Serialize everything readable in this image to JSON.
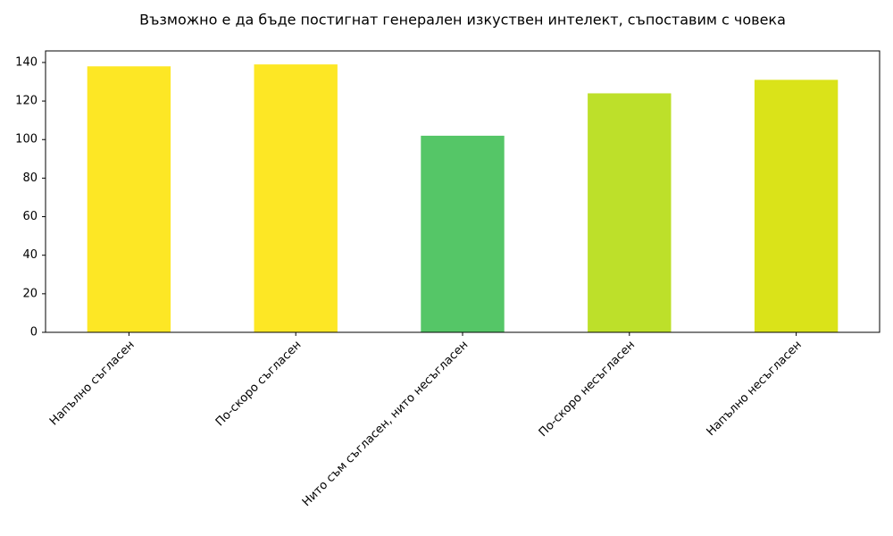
{
  "chart_data": {
    "type": "bar",
    "title": "Възможно е да бъде постигнат генерален изкуствен интелект, съпоставим с човека",
    "categories": [
      "Напълно съгласен",
      "По-скоро съгласен",
      "Нито съм съгласен, нито несъгласен",
      "По-скоро несъгласен",
      "Напълно несъгласен"
    ],
    "values": [
      138,
      139,
      102,
      124,
      131
    ],
    "colors": [
      "#fde725",
      "#fde725",
      "#55c667",
      "#bde02a",
      "#dae319"
    ],
    "ylim": [
      0,
      146
    ],
    "yticks": [
      0,
      20,
      40,
      60,
      80,
      100,
      120,
      140
    ],
    "grid": false
  }
}
